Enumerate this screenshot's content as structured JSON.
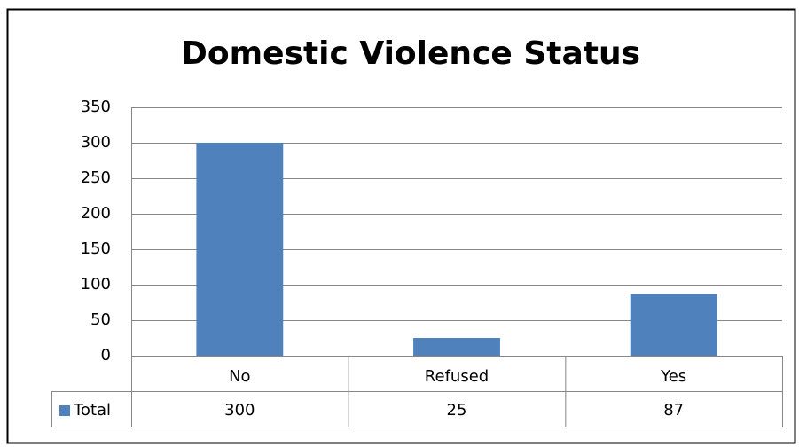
{
  "chart_data": {
    "type": "bar",
    "title": "Domestic Violence Status",
    "categories": [
      "No",
      "Refused",
      "Yes"
    ],
    "series": [
      {
        "name": "Total",
        "color": "#4f81bd",
        "values": [
          300,
          25,
          87
        ]
      }
    ],
    "ylim": [
      0,
      350
    ],
    "yticks": [
      0,
      50,
      100,
      150,
      200,
      250,
      300,
      350
    ],
    "grid": true,
    "data_table": true
  }
}
